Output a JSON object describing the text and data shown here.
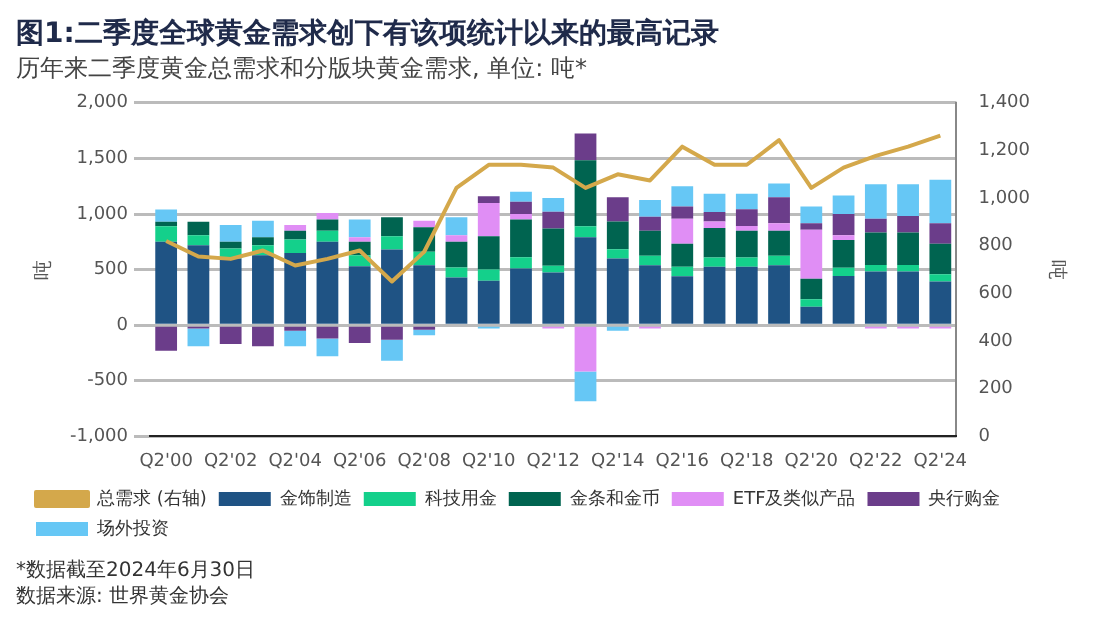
{
  "chart_data": {
    "type": "bar",
    "title": "图1:二季度全球黄金需求创下有该项统计以来的最高记录",
    "subtitle": "历年来二季度黄金总需求和分版块黄金需求, 单位: 吨*",
    "ylabel": "吨",
    "y2label": "吨",
    "annotations": [
      "*数据截至2024年6月30日",
      "数据来源: 世界黄金协会"
    ],
    "categories": [
      "Q2'00",
      null,
      "Q2'02",
      null,
      "Q2'04",
      null,
      "Q2'06",
      null,
      "Q2'08",
      null,
      "Q2'10",
      null,
      "Q2'12",
      null,
      "Q2'14",
      null,
      "Q2'16",
      null,
      "Q2'18",
      null,
      "Q2'20",
      null,
      "Q2'22",
      null,
      "Q2'24"
    ],
    "stacked": true,
    "grid": "y",
    "legend": "bottom",
    "ylim": [
      -1000,
      2000
    ],
    "yticks": [
      {
        "value": -1000,
        "label": "-1,000"
      },
      -500,
      0,
      500,
      {
        "value": 1000,
        "label": "1,000"
      },
      {
        "value": 1500,
        "label": "1,500"
      },
      {
        "value": 2000,
        "label": "2,000"
      }
    ],
    "y2lim": [
      0,
      1400
    ],
    "y2ticks": [
      0,
      200,
      400,
      600,
      800,
      {
        "value": 1000,
        "label": "1,000"
      },
      {
        "value": 1200,
        "label": "1,200"
      },
      {
        "value": 1400,
        "label": "1,400"
      }
    ],
    "series": [
      {
        "name": "金饰制造",
        "color": "#1f5384",
        "values": [
          750,
          720,
          600,
          630,
          650,
          750,
          530,
          680,
          540,
          430,
          400,
          510,
          475,
          790,
          600,
          540,
          440,
          525,
          525,
          540,
          167,
          442,
          483,
          483,
          392
        ]
      },
      {
        "name": "科技用金",
        "color": "#14d08b",
        "values": [
          140,
          90,
          90,
          90,
          120,
          100,
          100,
          120,
          120,
          90,
          100,
          100,
          60,
          100,
          83,
          85,
          85,
          83,
          83,
          85,
          66,
          75,
          59,
          59,
          66
        ]
      },
      {
        "name": "金条和金币",
        "color": "#006450",
        "values": [
          40,
          120,
          60,
          70,
          80,
          100,
          120,
          170,
          220,
          230,
          300,
          340,
          335,
          593,
          250,
          225,
          208,
          267,
          242,
          225,
          184,
          250,
          291,
          291,
          275
        ]
      },
      {
        "name": "ETF及类似产品",
        "color": "#e08ef5",
        "values": [
          null,
          null,
          null,
          null,
          50,
          60,
          40,
          null,
          60,
          60,
          300,
          50,
          -30,
          -417,
          null,
          -30,
          225,
          58,
          42,
          67,
          441,
          41,
          -30,
          -30,
          -30
        ]
      },
      {
        "name": "央行购金",
        "color": "#6b3d8a",
        "values": [
          -230,
          -30,
          -170,
          -190,
          -50,
          -120,
          -160,
          -130,
          -40,
          null,
          60,
          110,
          150,
          242,
          217,
          125,
          109,
          84,
          150,
          233,
          59,
          192,
          125,
          150,
          184
        ]
      },
      {
        "name": "场外投资",
        "color": "#66c7f5",
        "values": [
          110,
          -160,
          150,
          150,
          -140,
          -160,
          160,
          -190,
          -50,
          160,
          -30,
          90,
          125,
          -266,
          -50,
          150,
          183,
          166,
          141,
          125,
          150,
          167,
          309,
          284,
          391
        ]
      },
      {
        "name": "总需求 (右轴)",
        "type": "line",
        "axis": "y2",
        "color": "#d4a84b",
        "values": [
          820,
          755,
          745,
          780,
          717,
          745,
          780,
          650,
          775,
          1043,
          1140,
          1140,
          1128,
          1043,
          1100,
          1074,
          1216,
          1140,
          1140,
          1243,
          1043,
          1128,
          1177,
          1216,
          1262
        ]
      }
    ]
  }
}
